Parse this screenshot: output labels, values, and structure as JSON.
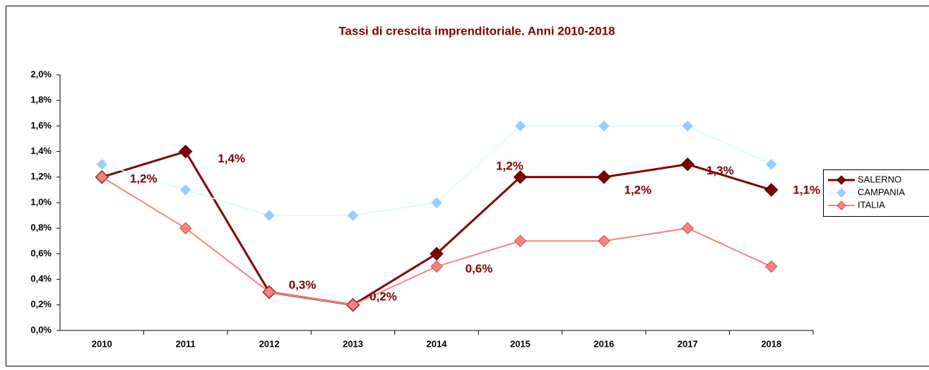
{
  "chart_data": {
    "type": "line",
    "title": "Tassi di crescita imprenditoriale. Anni 2010-2018",
    "categories": [
      "2010",
      "2011",
      "2012",
      "2013",
      "2014",
      "2015",
      "2016",
      "2017",
      "2018"
    ],
    "series": [
      {
        "name": "SALERNO",
        "color": "#800000",
        "values": [
          1.2,
          1.4,
          0.3,
          0.2,
          0.6,
          1.2,
          1.2,
          1.3,
          1.1
        ],
        "value_labels": [
          "1,2%",
          "1,4%",
          "0,3%",
          "0,2%",
          "0,6%",
          "1,2%",
          "1,2%",
          "1,3%",
          "1,1%"
        ]
      },
      {
        "name": "CAMPANIA",
        "color": "#99ccff",
        "values": [
          1.3,
          1.1,
          0.9,
          0.9,
          1.0,
          1.6,
          1.6,
          1.6,
          1.3
        ]
      },
      {
        "name": "ITALIA",
        "color": "#ff8080",
        "values": [
          1.2,
          0.8,
          0.3,
          0.2,
          0.5,
          0.7,
          0.7,
          0.8,
          0.5
        ]
      }
    ],
    "ylim": [
      0,
      2.0
    ],
    "yticks": [
      {
        "value": 0,
        "label": "0,0%"
      },
      {
        "value": 0.2,
        "label": "0,2%"
      },
      {
        "value": 0.4,
        "label": "0,4%"
      },
      {
        "value": 0.6,
        "label": "0,6%"
      },
      {
        "value": 0.8,
        "label": "0,8%"
      },
      {
        "value": 1.0,
        "label": "1,0%"
      },
      {
        "value": 1.2,
        "label": "1,2%"
      },
      {
        "value": 1.4,
        "label": "1,4%"
      },
      {
        "value": 1.6,
        "label": "1,6%"
      },
      {
        "value": 1.8,
        "label": "1,8%"
      },
      {
        "value": 2.0,
        "label": "2,0%"
      }
    ],
    "legend": "right"
  }
}
